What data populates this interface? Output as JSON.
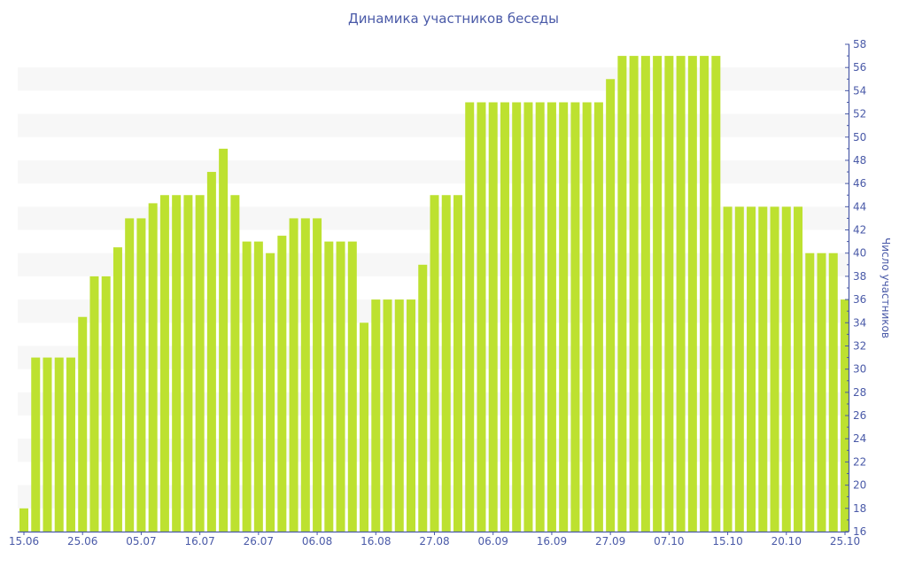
{
  "chart_data": {
    "type": "bar",
    "title": "Динамика участников беседы",
    "xlabel": "",
    "ylabel": "Число участников",
    "ylim": [
      16,
      58
    ],
    "ytick_step": 2,
    "grid": "alternating horizontal bands",
    "y_axis_side": "right",
    "bar_color": "#bde130",
    "band_color": "#f7f7f7",
    "text_color": "#4a5aa8",
    "x_tick_labels": [
      {
        "index": 0,
        "label": "15.06"
      },
      {
        "index": 5,
        "label": "25.06"
      },
      {
        "index": 10,
        "label": "05.07"
      },
      {
        "index": 15,
        "label": "16.07"
      },
      {
        "index": 20,
        "label": "26.07"
      },
      {
        "index": 25,
        "label": "06.08"
      },
      {
        "index": 30,
        "label": "16.08"
      },
      {
        "index": 35,
        "label": "27.08"
      },
      {
        "index": 40,
        "label": "06.09"
      },
      {
        "index": 45,
        "label": "16.09"
      },
      {
        "index": 50,
        "label": "27.09"
      },
      {
        "index": 55,
        "label": "07.10"
      },
      {
        "index": 60,
        "label": "15.10"
      },
      {
        "index": 65,
        "label": "20.10"
      },
      {
        "index": 70,
        "label": "25.10"
      }
    ],
    "values": [
      18,
      31,
      31,
      31,
      31,
      34.5,
      38,
      38,
      40.5,
      43,
      43,
      44.3,
      45,
      45,
      45,
      45,
      47,
      49,
      45,
      41,
      41,
      40,
      41.5,
      43,
      43,
      43,
      41,
      41,
      41,
      34,
      36,
      36,
      36,
      36,
      39,
      45,
      45,
      45,
      53,
      53,
      53,
      53,
      53,
      53,
      53,
      53,
      53,
      53,
      53,
      53,
      55,
      57,
      57,
      57,
      57,
      57,
      57,
      57,
      57,
      57,
      44,
      44,
      44,
      44,
      44,
      44,
      44,
      40,
      40,
      40,
      36
    ]
  }
}
